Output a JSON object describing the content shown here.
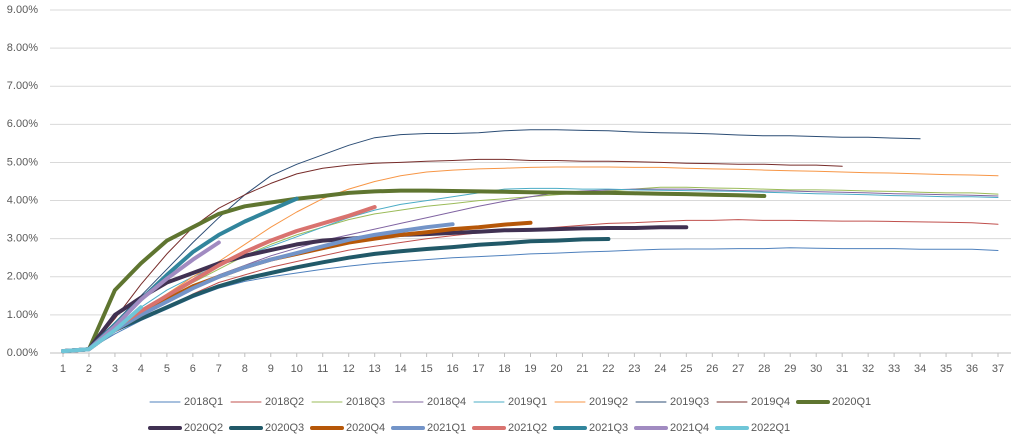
{
  "chart_data": {
    "type": "line",
    "x": [
      1,
      2,
      3,
      4,
      5,
      6,
      7,
      8,
      9,
      10,
      11,
      12,
      13,
      14,
      15,
      16,
      17,
      18,
      19,
      20,
      21,
      22,
      23,
      24,
      25,
      26,
      27,
      28,
      29,
      30,
      31,
      32,
      33,
      34,
      35,
      36,
      37
    ],
    "xlim": [
      0.5,
      37.5
    ],
    "xticks": [
      1,
      2,
      3,
      4,
      5,
      6,
      7,
      8,
      9,
      10,
      11,
      12,
      13,
      14,
      15,
      16,
      17,
      18,
      19,
      20,
      21,
      22,
      23,
      24,
      25,
      26,
      27,
      28,
      29,
      30,
      31,
      32,
      33,
      34,
      35,
      36,
      37
    ],
    "ylim": [
      0,
      9
    ],
    "yticks": [
      {
        "value": 0,
        "label": "0.00%"
      },
      {
        "value": 1,
        "label": "1.00%"
      },
      {
        "value": 2,
        "label": "2.00%"
      },
      {
        "value": 3,
        "label": "3.00%"
      },
      {
        "value": 4,
        "label": "4.00%"
      },
      {
        "value": 5,
        "label": "5.00%"
      },
      {
        "value": 6,
        "label": "6.00%"
      },
      {
        "value": 7,
        "label": "7.00%"
      },
      {
        "value": 8,
        "label": "8.00%"
      },
      {
        "value": 9,
        "label": "9.00%"
      }
    ],
    "grid": true,
    "legend": "bottom",
    "series": [
      {
        "name": "2018Q1",
        "color": "#4f81bd",
        "line_width": 1,
        "values": [
          0.05,
          0.1,
          0.5,
          0.85,
          1.15,
          1.45,
          1.7,
          1.88,
          2.0,
          2.1,
          2.2,
          2.28,
          2.35,
          2.4,
          2.45,
          2.5,
          2.53,
          2.56,
          2.6,
          2.62,
          2.65,
          2.67,
          2.7,
          2.72,
          2.73,
          2.73,
          2.74,
          2.74,
          2.76,
          2.75,
          2.74,
          2.74,
          2.74,
          2.72,
          2.72,
          2.72,
          2.69
        ]
      },
      {
        "name": "2018Q2",
        "color": "#c0504d",
        "line_width": 1,
        "values": [
          0.05,
          0.1,
          0.55,
          0.9,
          1.2,
          1.55,
          1.85,
          2.05,
          2.25,
          2.4,
          2.55,
          2.7,
          2.8,
          2.9,
          3.0,
          3.08,
          3.15,
          3.2,
          3.25,
          3.3,
          3.35,
          3.4,
          3.42,
          3.45,
          3.48,
          3.48,
          3.5,
          3.48,
          3.48,
          3.47,
          3.46,
          3.46,
          3.45,
          3.44,
          3.43,
          3.42,
          3.38
        ]
      },
      {
        "name": "2018Q3",
        "color": "#9bbb59",
        "line_width": 1,
        "values": [
          0.05,
          0.1,
          0.6,
          1.05,
          1.45,
          1.85,
          2.2,
          2.55,
          2.85,
          3.1,
          3.3,
          3.5,
          3.65,
          3.75,
          3.85,
          3.92,
          4.0,
          4.05,
          4.1,
          4.15,
          4.2,
          4.25,
          4.3,
          4.35,
          4.35,
          4.33,
          4.32,
          4.3,
          4.28,
          4.28,
          4.27,
          4.25,
          4.24,
          4.22,
          4.2,
          4.2,
          4.17
        ]
      },
      {
        "name": "2018Q4",
        "color": "#8064a2",
        "line_width": 1,
        "values": [
          0.05,
          0.1,
          0.55,
          1.0,
          1.4,
          1.75,
          2.05,
          2.3,
          2.55,
          2.75,
          2.95,
          3.1,
          3.25,
          3.4,
          3.55,
          3.7,
          3.85,
          3.98,
          4.1,
          4.2,
          4.25,
          4.28,
          4.3,
          4.3,
          4.3,
          4.28,
          4.26,
          4.25,
          4.25,
          4.23,
          4.22,
          4.2,
          4.18,
          4.17,
          4.15,
          4.14,
          4.12
        ]
      },
      {
        "name": "2019Q1",
        "color": "#4bacc6",
        "line_width": 1,
        "values": [
          0.05,
          0.1,
          0.7,
          1.2,
          1.65,
          2.0,
          2.3,
          2.55,
          2.8,
          3.05,
          3.3,
          3.55,
          3.75,
          3.9,
          4.0,
          4.1,
          4.2,
          4.3,
          4.32,
          4.32,
          4.3,
          4.3,
          4.28,
          4.27,
          4.26,
          4.25,
          4.24,
          4.22,
          4.2,
          4.18,
          4.17,
          4.15,
          4.13,
          4.12,
          4.1,
          4.1,
          4.08
        ]
      },
      {
        "name": "2019Q2",
        "color": "#f79646",
        "line_width": 1,
        "values": [
          0.05,
          0.1,
          0.6,
          1.1,
          1.55,
          2.0,
          2.4,
          2.85,
          3.3,
          3.7,
          4.05,
          4.3,
          4.5,
          4.65,
          4.75,
          4.8,
          4.83,
          4.85,
          4.87,
          4.88,
          4.88,
          4.88,
          4.87,
          4.87,
          4.85,
          4.83,
          4.82,
          4.8,
          4.78,
          4.77,
          4.75,
          4.73,
          4.72,
          4.7,
          4.68,
          4.67,
          4.65
        ]
      },
      {
        "name": "2019Q3",
        "color": "#2c4d75",
        "line_width": 1,
        "values": [
          0.05,
          0.1,
          0.8,
          1.5,
          2.2,
          2.9,
          3.55,
          4.15,
          4.65,
          4.95,
          5.2,
          5.45,
          5.65,
          5.73,
          5.76,
          5.76,
          5.78,
          5.83,
          5.86,
          5.86,
          5.84,
          5.83,
          5.8,
          5.78,
          5.77,
          5.75,
          5.72,
          5.7,
          5.7,
          5.68,
          5.66,
          5.66,
          5.64,
          5.62,
          null,
          null,
          null
        ]
      },
      {
        "name": "2019Q4",
        "color": "#772c2a",
        "line_width": 1,
        "values": [
          0.05,
          0.1,
          0.9,
          1.8,
          2.6,
          3.3,
          3.8,
          4.15,
          4.45,
          4.7,
          4.85,
          4.93,
          4.98,
          5.0,
          5.03,
          5.05,
          5.08,
          5.08,
          5.05,
          5.05,
          5.03,
          5.03,
          5.02,
          5.0,
          4.98,
          4.97,
          4.95,
          4.95,
          4.93,
          4.93,
          4.9,
          null,
          null,
          null,
          null,
          null,
          null
        ]
      },
      {
        "name": "2020Q1",
        "color": "#5f7530",
        "line_width": 4,
        "values": [
          0.05,
          0.1,
          1.65,
          2.35,
          2.95,
          3.3,
          3.65,
          3.85,
          3.95,
          4.05,
          4.12,
          4.2,
          4.24,
          4.26,
          4.26,
          4.25,
          4.24,
          4.23,
          4.22,
          4.21,
          4.2,
          4.2,
          4.19,
          4.18,
          4.17,
          4.15,
          4.14,
          4.12,
          null,
          null,
          null,
          null,
          null,
          null,
          null,
          null,
          null
        ]
      },
      {
        "name": "2020Q2",
        "color": "#403152",
        "line_width": 4,
        "values": [
          0.05,
          0.1,
          1.0,
          1.45,
          1.85,
          2.1,
          2.35,
          2.55,
          2.7,
          2.85,
          2.95,
          3.0,
          3.05,
          3.1,
          3.12,
          3.15,
          3.18,
          3.22,
          3.23,
          3.25,
          3.27,
          3.28,
          3.28,
          3.3,
          3.3,
          null,
          null,
          null,
          null,
          null,
          null,
          null,
          null,
          null,
          null,
          null,
          null
        ]
      },
      {
        "name": "2020Q3",
        "color": "#215968",
        "line_width": 4,
        "values": [
          0.05,
          0.1,
          0.6,
          0.9,
          1.2,
          1.5,
          1.75,
          1.95,
          2.1,
          2.25,
          2.38,
          2.5,
          2.6,
          2.67,
          2.73,
          2.78,
          2.84,
          2.88,
          2.93,
          2.95,
          2.98,
          2.99,
          null,
          null,
          null,
          null,
          null,
          null,
          null,
          null,
          null,
          null,
          null,
          null,
          null,
          null,
          null
        ]
      },
      {
        "name": "2020Q4",
        "color": "#b65708",
        "line_width": 4,
        "values": [
          0.05,
          0.1,
          0.6,
          1.0,
          1.4,
          1.75,
          2.0,
          2.25,
          2.45,
          2.6,
          2.75,
          2.9,
          3.0,
          3.1,
          3.17,
          3.25,
          3.3,
          3.37,
          3.42,
          null,
          null,
          null,
          null,
          null,
          null,
          null,
          null,
          null,
          null,
          null,
          null,
          null,
          null,
          null,
          null,
          null,
          null
        ]
      },
      {
        "name": "2021Q1",
        "color": "#7394c8",
        "line_width": 4,
        "values": [
          0.05,
          0.1,
          0.6,
          1.0,
          1.35,
          1.7,
          2.0,
          2.25,
          2.45,
          2.62,
          2.8,
          2.97,
          3.1,
          3.2,
          3.3,
          3.38,
          null,
          null,
          null,
          null,
          null,
          null,
          null,
          null,
          null,
          null,
          null,
          null,
          null,
          null,
          null,
          null,
          null,
          null,
          null,
          null,
          null
        ]
      },
      {
        "name": "2021Q2",
        "color": "#d9736f",
        "line_width": 4,
        "values": [
          0.05,
          0.1,
          0.65,
          1.1,
          1.5,
          1.9,
          2.3,
          2.65,
          2.95,
          3.2,
          3.4,
          3.6,
          3.83,
          null,
          null,
          null,
          null,
          null,
          null,
          null,
          null,
          null,
          null,
          null,
          null,
          null,
          null,
          null,
          null,
          null,
          null,
          null,
          null,
          null,
          null,
          null,
          null
        ]
      },
      {
        "name": "2021Q3",
        "color": "#31859c",
        "line_width": 4,
        "values": [
          0.05,
          0.1,
          0.75,
          1.4,
          2.05,
          2.65,
          3.1,
          3.45,
          3.75,
          4.05,
          null,
          null,
          null,
          null,
          null,
          null,
          null,
          null,
          null,
          null,
          null,
          null,
          null,
          null,
          null,
          null,
          null,
          null,
          null,
          null,
          null,
          null,
          null,
          null,
          null,
          null,
          null
        ]
      },
      {
        "name": "2021Q4",
        "color": "#a18bc1",
        "line_width": 4,
        "values": [
          0.05,
          0.1,
          0.7,
          1.4,
          1.95,
          2.45,
          2.9,
          null,
          null,
          null,
          null,
          null,
          null,
          null,
          null,
          null,
          null,
          null,
          null,
          null,
          null,
          null,
          null,
          null,
          null,
          null,
          null,
          null,
          null,
          null,
          null,
          null,
          null,
          null,
          null,
          null,
          null
        ]
      },
      {
        "name": "2022Q1",
        "color": "#6fc6d8",
        "line_width": 4,
        "values": [
          0.05,
          0.1,
          0.6,
          1.2,
          null,
          null,
          null,
          null,
          null,
          null,
          null,
          null,
          null,
          null,
          null,
          null,
          null,
          null,
          null,
          null,
          null,
          null,
          null,
          null,
          null,
          null,
          null,
          null,
          null,
          null,
          null,
          null,
          null,
          null,
          null,
          null,
          null
        ]
      }
    ]
  }
}
